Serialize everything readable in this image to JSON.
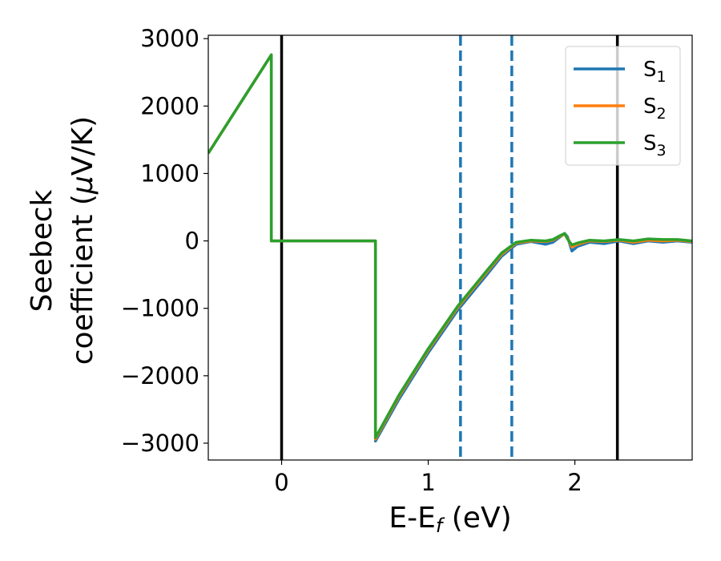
{
  "chart_data": {
    "type": "line",
    "title": "",
    "xlabel": {
      "main": "E-E",
      "sub": "f",
      "unit": " (eV)"
    },
    "ylabel": {
      "line1": "Seebeck",
      "line2_text": "coefficient  (",
      "line2_mu": "μ",
      "line2_unit": "V/K)"
    },
    "xlim": [
      -0.5,
      2.8
    ],
    "ylim": [
      -3250,
      3050
    ],
    "xticks": [
      0,
      1,
      2
    ],
    "xtick_labels": [
      "0",
      "1",
      "2"
    ],
    "yticks": [
      -3000,
      -2000,
      -1000,
      0,
      1000,
      2000,
      3000
    ],
    "ytick_labels": [
      "−3000",
      "−2000",
      "−1000",
      "0",
      "1000",
      "2000",
      "3000"
    ],
    "grid": false,
    "legend_position": "top-right",
    "vlines": [
      {
        "x": 0.0,
        "style": "solid",
        "color": "#000000"
      },
      {
        "x": 2.29,
        "style": "solid",
        "color": "#000000"
      },
      {
        "x": 1.22,
        "style": "dashed",
        "color": "#1f77b4"
      },
      {
        "x": 1.57,
        "style": "dashed",
        "color": "#1f77b4"
      }
    ],
    "series": [
      {
        "name": "S",
        "sub": "1",
        "color": "#1f77b4",
        "x": [
          -0.5,
          -0.07,
          -0.07,
          0.64,
          0.64,
          0.8,
          1.0,
          1.2,
          1.4,
          1.5,
          1.6,
          1.7,
          1.8,
          1.85,
          1.9,
          1.93,
          1.95,
          1.98,
          2.02,
          2.1,
          2.2,
          2.3,
          2.4,
          2.5,
          2.6,
          2.7,
          2.8
        ],
        "y": [
          1300,
          2760,
          0,
          0,
          -2970,
          -2350,
          -1660,
          -1030,
          -500,
          -230,
          -50,
          -10,
          -50,
          -20,
          60,
          110,
          60,
          -150,
          -80,
          -20,
          -40,
          0,
          -40,
          0,
          -20,
          0,
          -20
        ]
      },
      {
        "name": "S",
        "sub": "2",
        "color": "#ff7f0e",
        "x": [
          -0.5,
          -0.07,
          -0.07,
          0.64,
          0.64,
          0.8,
          1.0,
          1.2,
          1.4,
          1.5,
          1.6,
          1.7,
          1.8,
          1.85,
          1.9,
          1.93,
          1.95,
          1.98,
          2.02,
          2.1,
          2.2,
          2.3,
          2.4,
          2.5,
          2.6,
          2.7,
          2.8
        ],
        "y": [
          1300,
          2760,
          0,
          0,
          -2940,
          -2310,
          -1620,
          -990,
          -460,
          -200,
          -30,
          0,
          -10,
          10,
          70,
          100,
          40,
          -90,
          -50,
          0,
          -10,
          10,
          -20,
          10,
          0,
          10,
          -10
        ]
      },
      {
        "name": "S",
        "sub": "3",
        "color": "#2ca02c",
        "x": [
          -0.5,
          -0.07,
          -0.07,
          0.64,
          0.64,
          0.8,
          1.0,
          1.2,
          1.4,
          1.5,
          1.6,
          1.7,
          1.8,
          1.85,
          1.9,
          1.93,
          1.95,
          1.98,
          2.02,
          2.1,
          2.2,
          2.3,
          2.4,
          2.5,
          2.6,
          2.7,
          2.8
        ],
        "y": [
          1300,
          2760,
          0,
          0,
          -2920,
          -2290,
          -1600,
          -970,
          -440,
          -180,
          -20,
          10,
          0,
          20,
          80,
          110,
          30,
          -60,
          -30,
          10,
          0,
          20,
          0,
          30,
          20,
          20,
          0
        ]
      }
    ]
  }
}
